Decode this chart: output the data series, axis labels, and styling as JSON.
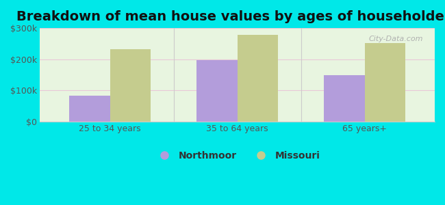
{
  "title": "Breakdown of mean house values by ages of householders",
  "categories": [
    "25 to 34 years",
    "35 to 64 years",
    "65 years+"
  ],
  "series": {
    "Northmoor": [
      83000,
      197000,
      150000
    ],
    "Missouri": [
      232000,
      278000,
      252000
    ]
  },
  "bar_colors": {
    "Northmoor": "#b39ddb",
    "Missouri": "#c5cc8e"
  },
  "ylim": [
    0,
    300000
  ],
  "yticks": [
    0,
    100000,
    200000,
    300000
  ],
  "ytick_labels": [
    "$0",
    "$100k",
    "$200k",
    "$300k"
  ],
  "outer_bg": "#00e8e8",
  "inner_bg_top": "#e8f5e0",
  "inner_bg_bottom": "#f5fff5",
  "title_fontsize": 14,
  "axis_label_fontsize": 9,
  "legend_fontsize": 10,
  "bar_width": 0.32,
  "watermark_text": "City-Data.com"
}
